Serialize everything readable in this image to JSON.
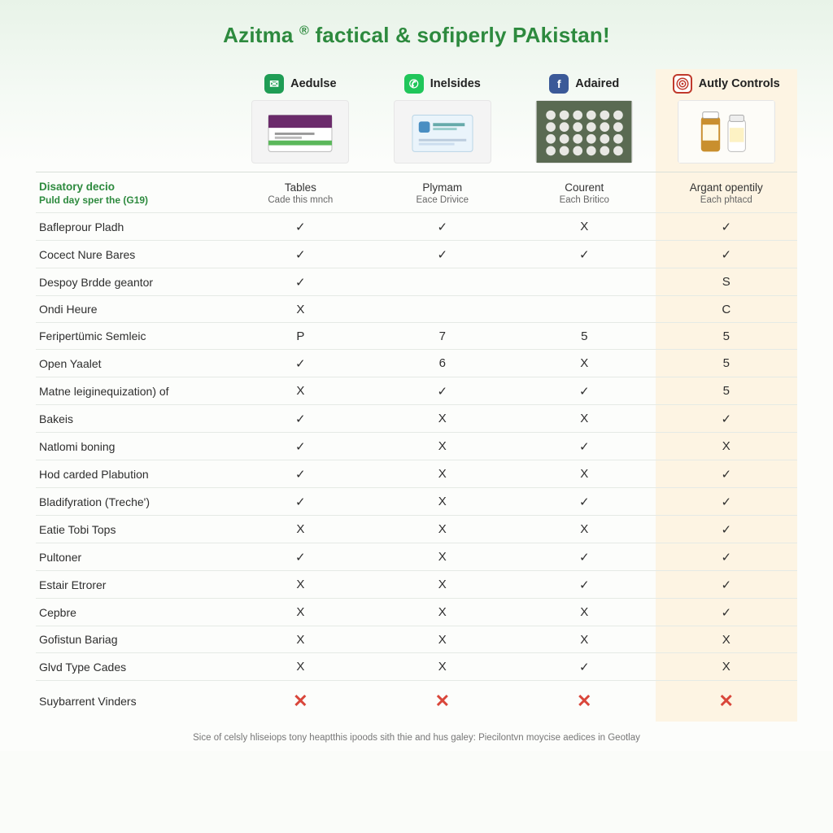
{
  "title_parts": [
    "Azitma ",
    "®",
    " factical & sofiperly PAkistan!"
  ],
  "colors": {
    "accent_green": "#2d8a3e",
    "border": "#e5eae5",
    "highlight_bg": "#fdf4e3",
    "cross_red": "#d9463a",
    "bg_top": "#e8f3e8"
  },
  "brands": [
    {
      "label": "Aedulse",
      "icon_bg": "#1f9d55",
      "icon_glyph": "✉"
    },
    {
      "label": "Inelsides",
      "icon_bg": "#20c65a",
      "icon_glyph": "✆"
    },
    {
      "label": "Adaired",
      "icon_bg": "#3b5998",
      "icon_glyph": "f"
    },
    {
      "label": "Autly Controls",
      "icon_bg": "#ffffff",
      "icon_glyph": "target",
      "icon_border": "#c0392b",
      "highlight": true
    }
  ],
  "rowhead_subhead": {
    "line1": "Disatory decio",
    "line2": "Puld day sper the (G19)"
  },
  "col_subheads": [
    {
      "line1": "Tables",
      "line2": "Cade this mnch"
    },
    {
      "line1": "Plymam",
      "line2": "Eace Drivice"
    },
    {
      "line1": "Courent",
      "line2": "Each Britico"
    },
    {
      "line1": "Argant opentily",
      "line2": "Each phtacd"
    }
  ],
  "rows": [
    {
      "label": "Bafleprour Pladh",
      "cells": [
        "✓",
        "✓",
        "X",
        "✓"
      ]
    },
    {
      "label": "Cocect Nure Bares",
      "cells": [
        "✓",
        "✓",
        "✓",
        "✓"
      ]
    },
    {
      "label": "Despoy Brdde geantor",
      "cells": [
        "✓",
        "",
        "",
        "S"
      ]
    },
    {
      "label": "Ondi Heure",
      "cells": [
        "X",
        "",
        "",
        "C"
      ]
    },
    {
      "label": "Feripertümic Semleic",
      "cells": [
        "P",
        "7",
        "5",
        "5"
      ]
    },
    {
      "label": "Open Yaalet",
      "cells": [
        "✓",
        "6",
        "X",
        "5"
      ]
    },
    {
      "label": "Matne leiginequization) of",
      "cells": [
        "X",
        "✓",
        "✓",
        "5"
      ]
    },
    {
      "label": "Bakeis",
      "cells": [
        "✓",
        "X",
        "X",
        "✓"
      ]
    },
    {
      "label": "Natlomi boning",
      "cells": [
        "✓",
        "X",
        "✓",
        "X"
      ]
    },
    {
      "label": "Hod carded Plabution",
      "cells": [
        "✓",
        "X",
        "X",
        "✓"
      ]
    },
    {
      "label": "Bladifyration (Treche')",
      "cells": [
        "✓",
        "X",
        "✓",
        "✓"
      ]
    },
    {
      "label": "Eatie Tobi Tops",
      "cells": [
        "X",
        "X",
        "X",
        "✓"
      ]
    },
    {
      "label": "Pultoner",
      "cells": [
        "✓",
        "X",
        "✓",
        "✓"
      ]
    },
    {
      "label": "Estair Etrorer",
      "cells": [
        "X",
        "X",
        "✓",
        "✓"
      ]
    },
    {
      "label": "Cepbre",
      "cells": [
        "X",
        "X",
        "X",
        "✓"
      ]
    },
    {
      "label": "Gofistun Bariag",
      "cells": [
        "X",
        "X",
        "X",
        "X"
      ]
    },
    {
      "label": "Glvd Type Cades",
      "cells": [
        "X",
        "X",
        "✓",
        "X"
      ]
    },
    {
      "label": "Suybarrent Vinders",
      "cells": [
        "✕",
        "✕",
        "✕",
        "✕"
      ],
      "big": true
    }
  ],
  "footer": "Sice of celsly hliseiops tony heaptthis ipoods sith thie and hus galey:  Piecilontvn moycise aedices in Geotlay"
}
